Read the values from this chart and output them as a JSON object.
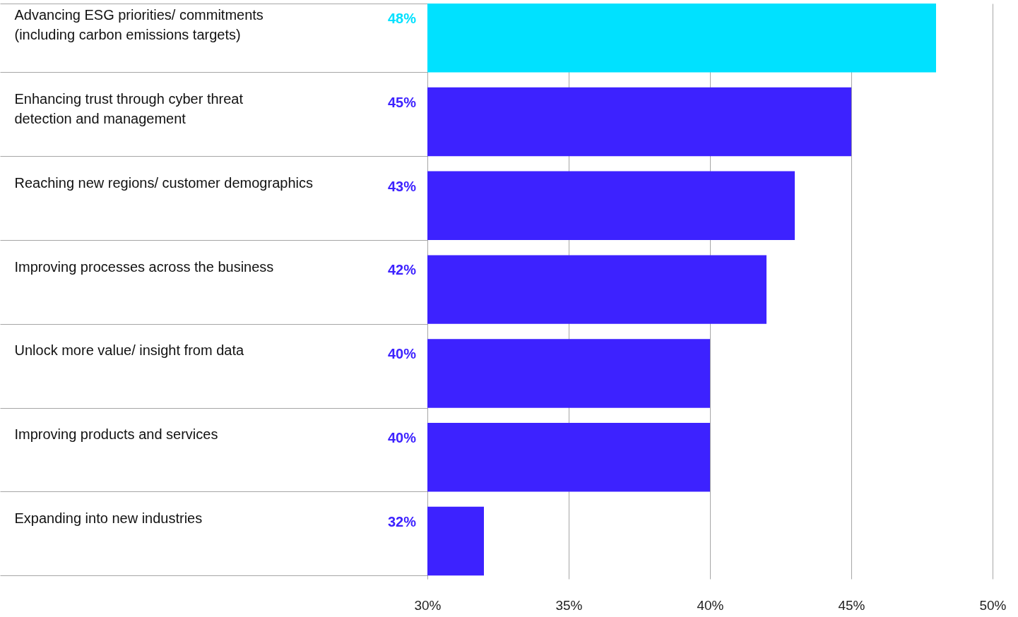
{
  "chart_data": {
    "type": "bar",
    "orientation": "horizontal",
    "categories": [
      "Advancing ESG priorities/ commitments (including carbon emissions targets)",
      "Enhancing trust through cyber threat detection and management",
      "Reaching new regions/ customer demographics",
      "Improving processes across the business",
      "Unlock more value/ insight from data",
      "Improving products and services",
      "Expanding into new industries"
    ],
    "values": [
      48,
      45,
      43,
      42,
      40,
      40,
      32
    ],
    "value_labels": [
      "48%",
      "45%",
      "43%",
      "42%",
      "40%",
      "40%",
      "32%"
    ],
    "colors": [
      "#00e1ff",
      "#3d22ff",
      "#3d22ff",
      "#3d22ff",
      "#3d22ff",
      "#3d22ff",
      "#3d22ff"
    ],
    "xlim": [
      30,
      50
    ],
    "xticks": [
      {
        "value": 30,
        "label": "30%"
      },
      {
        "value": 35,
        "label": "35%"
      },
      {
        "value": 40,
        "label": "40%"
      },
      {
        "value": 45,
        "label": "45%"
      },
      {
        "value": 50,
        "label": "50%"
      }
    ],
    "grid": "x"
  }
}
